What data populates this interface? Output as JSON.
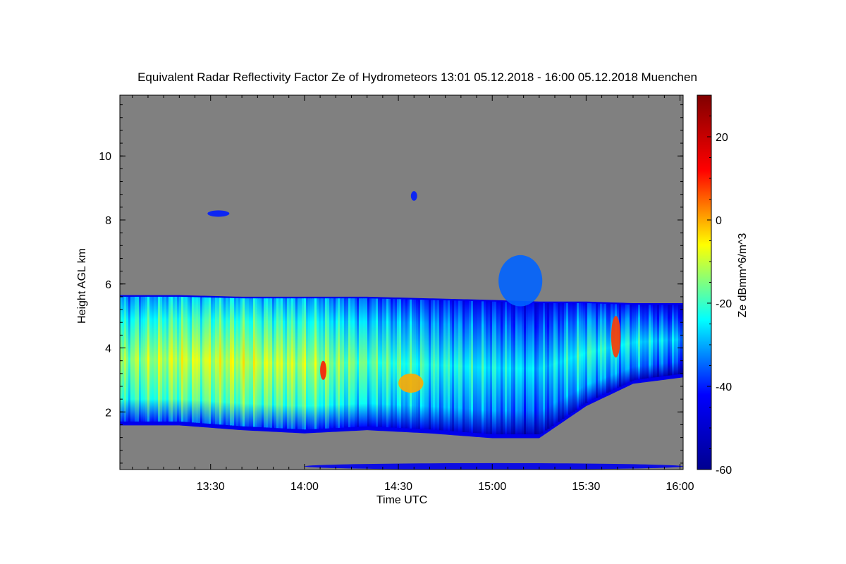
{
  "chart_data": {
    "type": "heatmap",
    "title": "Equivalent Radar Reflectivity Factor Ze of Hydrometeors   13:01 05.12.2018 - 16:00 05.12.2018 Muenchen",
    "xlabel": "Time UTC",
    "ylabel": "Height AGL km",
    "colorbar_label": "Ze dBmm^6/m^3",
    "x_range_minutes_utc": [
      781,
      961
    ],
    "y_range_km": [
      0.2,
      11.9
    ],
    "x_ticks": [
      {
        "value": 810,
        "label": "13:30"
      },
      {
        "value": 840,
        "label": "14:00"
      },
      {
        "value": 870,
        "label": "14:30"
      },
      {
        "value": 900,
        "label": "15:00"
      },
      {
        "value": 930,
        "label": "15:30"
      },
      {
        "value": 960,
        "label": "16:00"
      }
    ],
    "y_ticks": [
      {
        "value": 2,
        "label": "2"
      },
      {
        "value": 4,
        "label": "4"
      },
      {
        "value": 6,
        "label": "6"
      },
      {
        "value": 8,
        "label": "8"
      },
      {
        "value": 10,
        "label": "10"
      }
    ],
    "colorbar_range": [
      -60,
      30
    ],
    "colorbar_ticks": [
      {
        "value": 20,
        "label": "20"
      },
      {
        "value": 0,
        "label": "0"
      },
      {
        "value": -20,
        "label": "-20"
      },
      {
        "value": -40,
        "label": "-40"
      },
      {
        "value": -60,
        "label": "-60"
      }
    ],
    "colormap": [
      "#00008f",
      "#0000ff",
      "#00ffff",
      "#ffff00",
      "#ff0000",
      "#800000"
    ],
    "background_color": "#808080",
    "cloud_layer": {
      "time": [
        781,
        800,
        820,
        840,
        860,
        880,
        900,
        915,
        930,
        945,
        961
      ],
      "top_km": [
        5.6,
        5.6,
        5.55,
        5.55,
        5.55,
        5.5,
        5.45,
        5.4,
        5.4,
        5.35,
        5.35
      ],
      "base_km": [
        1.7,
        1.7,
        1.55,
        1.45,
        1.55,
        1.45,
        1.3,
        1.3,
        2.3,
        3.0,
        3.2
      ],
      "core_ze_dbz": [
        -15,
        -10,
        -10,
        -12,
        -18,
        -22,
        -25,
        -28,
        -22,
        -25,
        -30
      ]
    },
    "features": [
      {
        "name": "upper-cloud-patch",
        "time": [
          809,
          816
        ],
        "height_km": [
          8.1,
          8.3
        ],
        "ze_dbz": -40
      },
      {
        "name": "small-patch",
        "time": [
          874,
          876
        ],
        "height_km": [
          8.6,
          8.9
        ],
        "ze_dbz": -40
      },
      {
        "name": "turret",
        "time": [
          902,
          916
        ],
        "height_km": [
          5.3,
          6.9
        ],
        "ze_dbz": -35
      },
      {
        "name": "hotspot-1",
        "time": [
          845,
          847
        ],
        "height_km": [
          3.0,
          3.6
        ],
        "ze_dbz": 10
      },
      {
        "name": "hotspot-2",
        "time": [
          870,
          878
        ],
        "height_km": [
          2.6,
          3.2
        ],
        "ze_dbz": 0
      },
      {
        "name": "hotspot-3",
        "time": [
          938,
          941
        ],
        "height_km": [
          3.7,
          5.0
        ],
        "ze_dbz": 8
      },
      {
        "name": "surface-echo",
        "time": [
          840,
          961
        ],
        "height_km": [
          0.2,
          0.4
        ],
        "ze_dbz": -45
      }
    ]
  }
}
